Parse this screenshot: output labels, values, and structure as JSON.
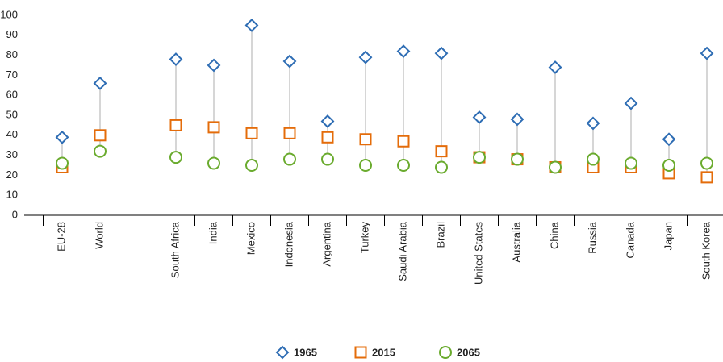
{
  "chart_data": {
    "type": "dot-range",
    "categories": [
      "EU-28",
      "World",
      null,
      "South Africa",
      "India",
      "Mexico",
      "Indonesia",
      "Argentina",
      "Turkey",
      "Saudi Arabia",
      "Brazil",
      "United States",
      "Australia",
      "China",
      "Russia",
      "Canada",
      "Japan",
      "South Korea"
    ],
    "series": [
      {
        "name": "1965",
        "color": "#2e6db4",
        "marker": "diamond",
        "values": [
          39,
          66,
          null,
          78,
          75,
          95,
          77,
          47,
          79,
          82,
          81,
          49,
          48,
          74,
          46,
          56,
          38,
          81
        ]
      },
      {
        "name": "2015",
        "color": "#e46c0a",
        "marker": "square",
        "values": [
          24,
          40,
          null,
          45,
          44,
          41,
          41,
          39,
          38,
          37,
          32,
          29,
          28,
          24,
          24,
          24,
          21,
          19
        ]
      },
      {
        "name": "2065",
        "color": "#6aab2e",
        "marker": "circle",
        "values": [
          26,
          32,
          null,
          29,
          26,
          25,
          28,
          28,
          25,
          25,
          24,
          29,
          28,
          24,
          28,
          26,
          25,
          26
        ]
      }
    ],
    "ylim": [
      0,
      100
    ],
    "yticks": [
      0,
      10,
      20,
      30,
      40,
      50,
      60,
      70,
      80,
      90,
      100
    ],
    "grid": false,
    "legend": "bottom"
  }
}
